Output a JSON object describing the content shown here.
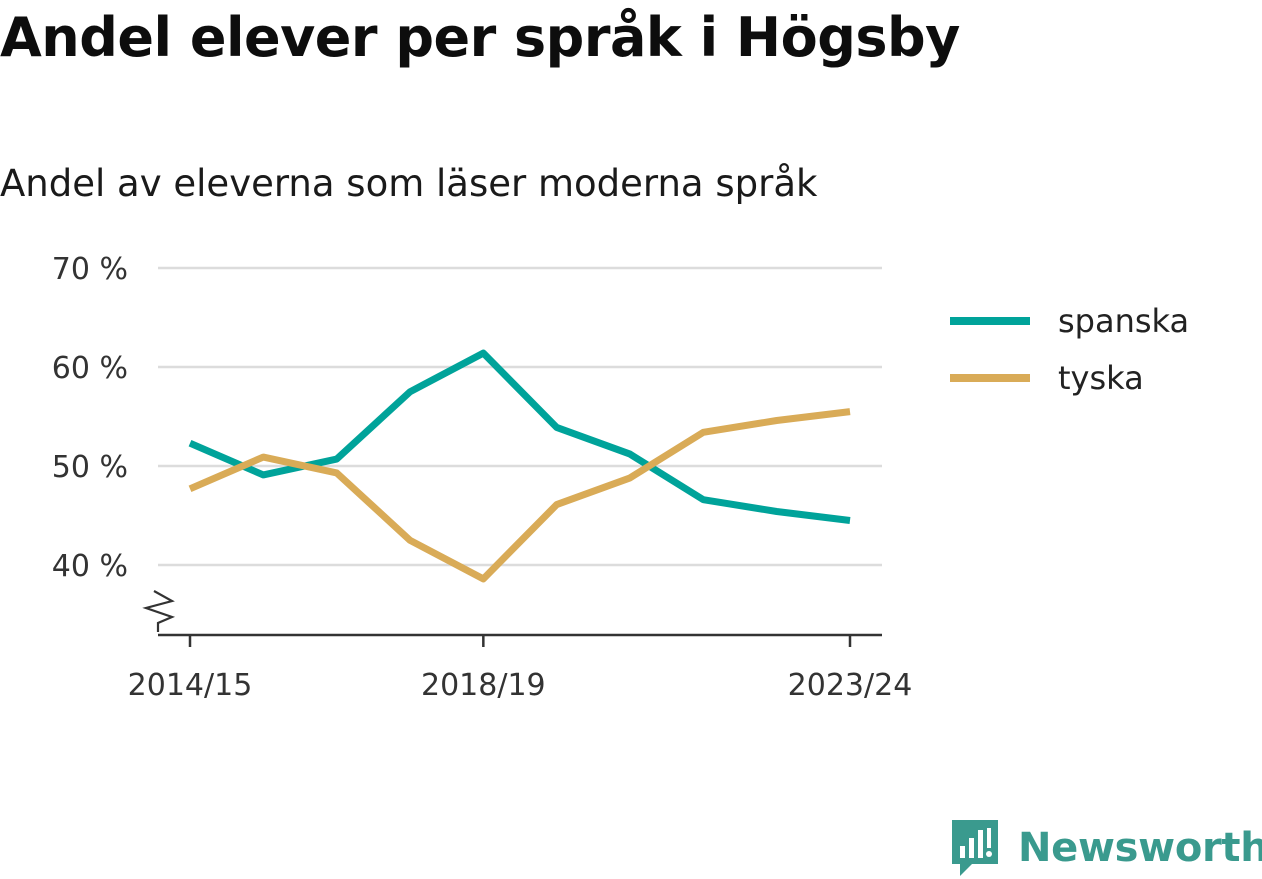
{
  "title": "Andel elever per språk i Högsby",
  "subtitle": "Andel av eleverna som läser moderna språk",
  "brand": {
    "name": "Newsworthy",
    "color": "#3a9a8e",
    "icon": "newsworthy-logo-icon"
  },
  "chart_data": {
    "type": "line",
    "x": [
      "2014/15",
      "2015/16",
      "2016/17",
      "2017/18",
      "2018/19",
      "2019/20",
      "2020/21",
      "2021/22",
      "2022/23",
      "2023/24"
    ],
    "x_tick_labels": [
      "2014/15",
      "2018/19",
      "2023/24"
    ],
    "y_ticks": [
      40,
      50,
      60,
      70
    ],
    "y_tick_labels": [
      "40 %",
      "50 %",
      "60 %",
      "70 %"
    ],
    "ylim": [
      33,
      70
    ],
    "y_axis_break": true,
    "grid": true,
    "legend_position": "right",
    "series": [
      {
        "name": "spanska",
        "color": "#00a39a",
        "values": [
          52.3,
          49.1,
          50.7,
          57.5,
          61.4,
          53.9,
          51.2,
          46.6,
          45.4,
          44.5
        ]
      },
      {
        "name": "tyska",
        "color": "#d9ab57",
        "values": [
          47.7,
          50.9,
          49.3,
          42.5,
          38.6,
          46.1,
          48.8,
          53.4,
          54.6,
          55.5
        ]
      }
    ]
  }
}
